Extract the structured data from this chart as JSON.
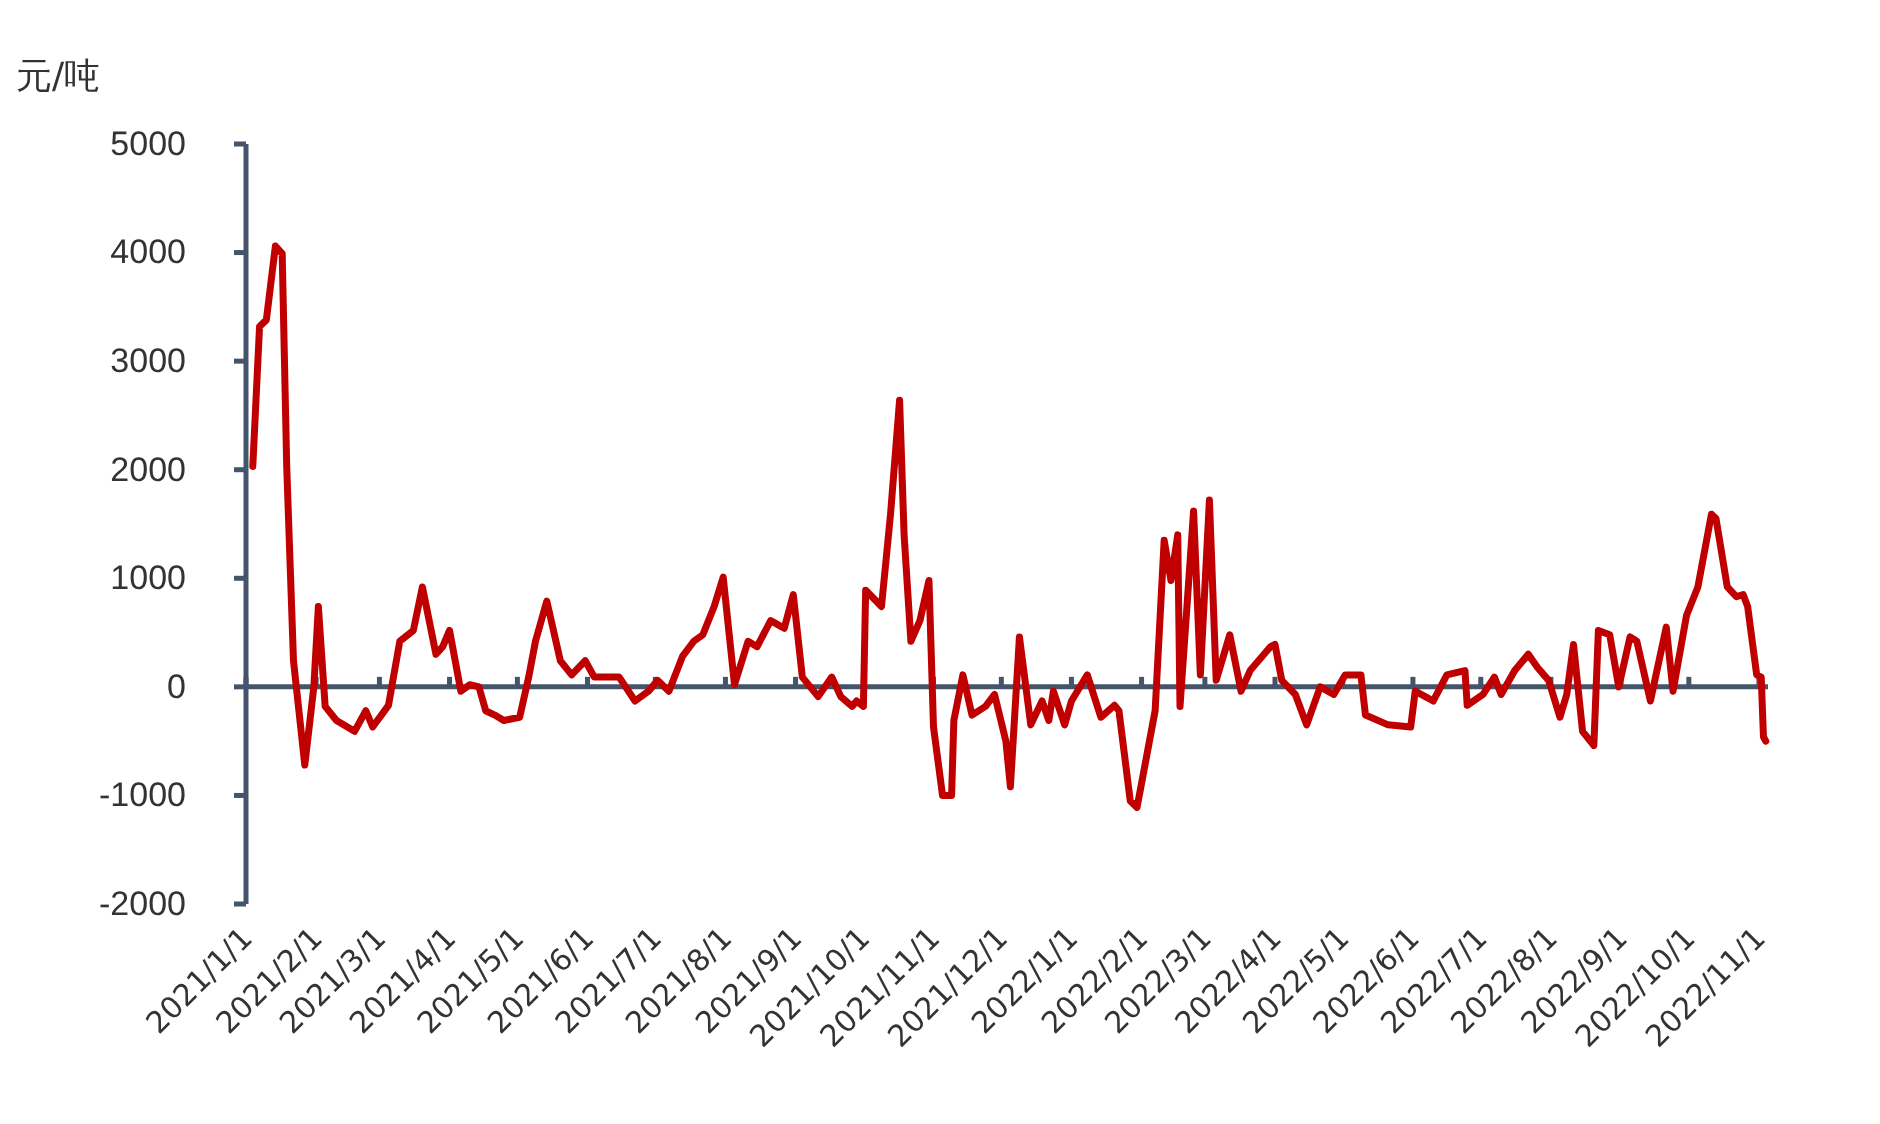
{
  "chart_data": {
    "type": "line",
    "ylabel": "元/吨",
    "xlim": [
      "2021-01-01",
      "2022-11-05"
    ],
    "xticks": [
      {
        "value": "2021-01-01",
        "label": "2021/1/1"
      },
      {
        "value": "2021-02-01",
        "label": "2021/2/1"
      },
      {
        "value": "2021-03-01",
        "label": "2021/3/1"
      },
      {
        "value": "2021-04-01",
        "label": "2021/4/1"
      },
      {
        "value": "2021-05-01",
        "label": "2021/5/1"
      },
      {
        "value": "2021-06-01",
        "label": "2021/6/1"
      },
      {
        "value": "2021-07-01",
        "label": "2021/7/1"
      },
      {
        "value": "2021-08-01",
        "label": "2021/8/1"
      },
      {
        "value": "2021-09-01",
        "label": "2021/9/1"
      },
      {
        "value": "2021-10-01",
        "label": "2021/10/1"
      },
      {
        "value": "2021-11-01",
        "label": "2021/11/1"
      },
      {
        "value": "2021-12-01",
        "label": "2021/12/1"
      },
      {
        "value": "2022-01-01",
        "label": "2022/1/1"
      },
      {
        "value": "2022-02-01",
        "label": "2022/2/1"
      },
      {
        "value": "2022-03-01",
        "label": "2022/3/1"
      },
      {
        "value": "2022-04-01",
        "label": "2022/4/1"
      },
      {
        "value": "2022-05-01",
        "label": "2022/5/1"
      },
      {
        "value": "2022-06-01",
        "label": "2022/6/1"
      },
      {
        "value": "2022-07-01",
        "label": "2022/7/1"
      },
      {
        "value": "2022-08-01",
        "label": "2022/8/1"
      },
      {
        "value": "2022-09-01",
        "label": "2022/9/1"
      },
      {
        "value": "2022-10-01",
        "label": "2022/10/1"
      },
      {
        "value": "2022-11-01",
        "label": "2022/11/1"
      }
    ],
    "ylim": [
      -2000,
      5000
    ],
    "yticks": [
      -2000,
      -1000,
      0,
      1000,
      2000,
      3000,
      4000,
      5000
    ],
    "marker": "none",
    "line_style": "solid",
    "x": [
      "2021-01-04",
      "2021-01-07",
      "2021-01-10",
      "2021-01-14",
      "2021-01-17",
      "2021-01-19",
      "2021-01-22",
      "2021-01-27",
      "2021-01-31",
      "2021-02-02",
      "2021-02-05",
      "2021-02-10",
      "2021-02-18",
      "2021-02-23",
      "2021-02-26",
      "2021-03-05",
      "2021-03-10",
      "2021-03-16",
      "2021-03-20",
      "2021-03-26",
      "2021-03-29",
      "2021-04-01",
      "2021-04-06",
      "2021-04-10",
      "2021-04-14",
      "2021-04-17",
      "2021-04-21",
      "2021-04-25",
      "2021-05-02",
      "2021-05-06",
      "2021-05-09",
      "2021-05-14",
      "2021-05-20",
      "2021-05-25",
      "2021-05-31",
      "2021-06-04",
      "2021-06-15",
      "2021-06-22",
      "2021-06-28",
      "2021-07-02",
      "2021-07-07",
      "2021-07-13",
      "2021-07-18",
      "2021-07-22",
      "2021-07-27",
      "2021-07-31",
      "2021-08-05",
      "2021-08-11",
      "2021-08-15",
      "2021-08-21",
      "2021-08-27",
      "2021-08-31",
      "2021-09-04",
      "2021-09-11",
      "2021-09-17",
      "2021-09-21",
      "2021-09-26",
      "2021-09-28",
      "2021-10-01",
      "2021-10-02",
      "2021-10-09",
      "2021-10-13",
      "2021-10-17",
      "2021-10-19",
      "2021-10-22",
      "2021-10-26",
      "2021-10-30",
      "2021-11-01",
      "2021-11-05",
      "2021-11-09",
      "2021-11-10",
      "2021-11-14",
      "2021-11-18",
      "2021-11-24",
      "2021-11-28",
      "2021-12-03",
      "2021-12-05",
      "2021-12-09",
      "2021-12-14",
      "2021-12-19",
      "2021-12-22",
      "2021-12-24",
      "2021-12-29",
      "2022-01-01",
      "2022-01-08",
      "2022-01-14",
      "2022-01-20",
      "2022-01-22",
      "2022-01-27",
      "2022-01-30",
      "2022-02-07",
      "2022-02-11",
      "2022-02-14",
      "2022-02-17",
      "2022-02-18",
      "2022-02-24",
      "2022-02-27",
      "2022-03-03",
      "2022-03-06",
      "2022-03-12",
      "2022-03-17",
      "2022-03-21",
      "2022-03-30",
      "2022-04-01",
      "2022-04-04",
      "2022-04-10",
      "2022-04-15",
      "2022-04-21",
      "2022-04-27",
      "2022-05-02",
      "2022-05-09",
      "2022-05-11",
      "2022-05-21",
      "2022-05-31",
      "2022-06-02",
      "2022-06-10",
      "2022-06-16",
      "2022-06-24",
      "2022-06-25",
      "2022-07-02",
      "2022-07-07",
      "2022-07-10",
      "2022-07-16",
      "2022-07-22",
      "2022-07-26",
      "2022-07-31",
      "2022-08-05",
      "2022-08-08",
      "2022-08-11",
      "2022-08-15",
      "2022-08-20",
      "2022-08-22",
      "2022-08-27",
      "2022-08-31",
      "2022-09-05",
      "2022-09-08",
      "2022-09-14",
      "2022-09-21",
      "2022-09-24",
      "2022-09-30",
      "2022-10-05",
      "2022-10-11",
      "2022-10-13",
      "2022-10-18",
      "2022-10-22",
      "2022-10-25",
      "2022-10-27",
      "2022-10-31",
      "2022-11-02",
      "2022-11-03",
      "2022-11-04"
    ],
    "series": [
      {
        "color": "#c00000",
        "values": [
          2030,
          3320,
          3380,
          4060,
          3990,
          2030,
          240,
          -720,
          0,
          740,
          -180,
          -310,
          -410,
          -220,
          -370,
          -170,
          420,
          520,
          920,
          300,
          370,
          520,
          -40,
          20,
          0,
          -220,
          -260,
          -310,
          -280,
          90,
          420,
          790,
          240,
          110,
          240,
          90,
          90,
          -130,
          -40,
          60,
          -40,
          280,
          420,
          480,
          740,
          1010,
          20,
          420,
          370,
          610,
          540,
          850,
          90,
          -90,
          90,
          -90,
          -180,
          -130,
          -180,
          890,
          740,
          1590,
          2640,
          1400,
          420,
          610,
          980,
          -370,
          -1000,
          -1000,
          -310,
          110,
          -260,
          -180,
          -70,
          -500,
          -920,
          460,
          -350,
          -130,
          -310,
          -40,
          -350,
          -130,
          110,
          -280,
          -170,
          -220,
          -1050,
          -1110,
          -220,
          1350,
          980,
          1400,
          -180,
          1620,
          110,
          1720,
          60,
          480,
          -40,
          150,
          370,
          390,
          60,
          -70,
          -350,
          0,
          -70,
          110,
          110,
          -260,
          -350,
          -370,
          -40,
          -130,
          110,
          150,
          -170,
          -70,
          90,
          -70,
          150,
          300,
          180,
          60,
          -280,
          -70,
          390,
          -410,
          -540,
          520,
          480,
          0,
          460,
          420,
          -130,
          550,
          -40,
          660,
          920,
          1590,
          1550,
          920,
          830,
          850,
          740,
          110,
          90,
          -460,
          -500
        ]
      }
    ]
  }
}
